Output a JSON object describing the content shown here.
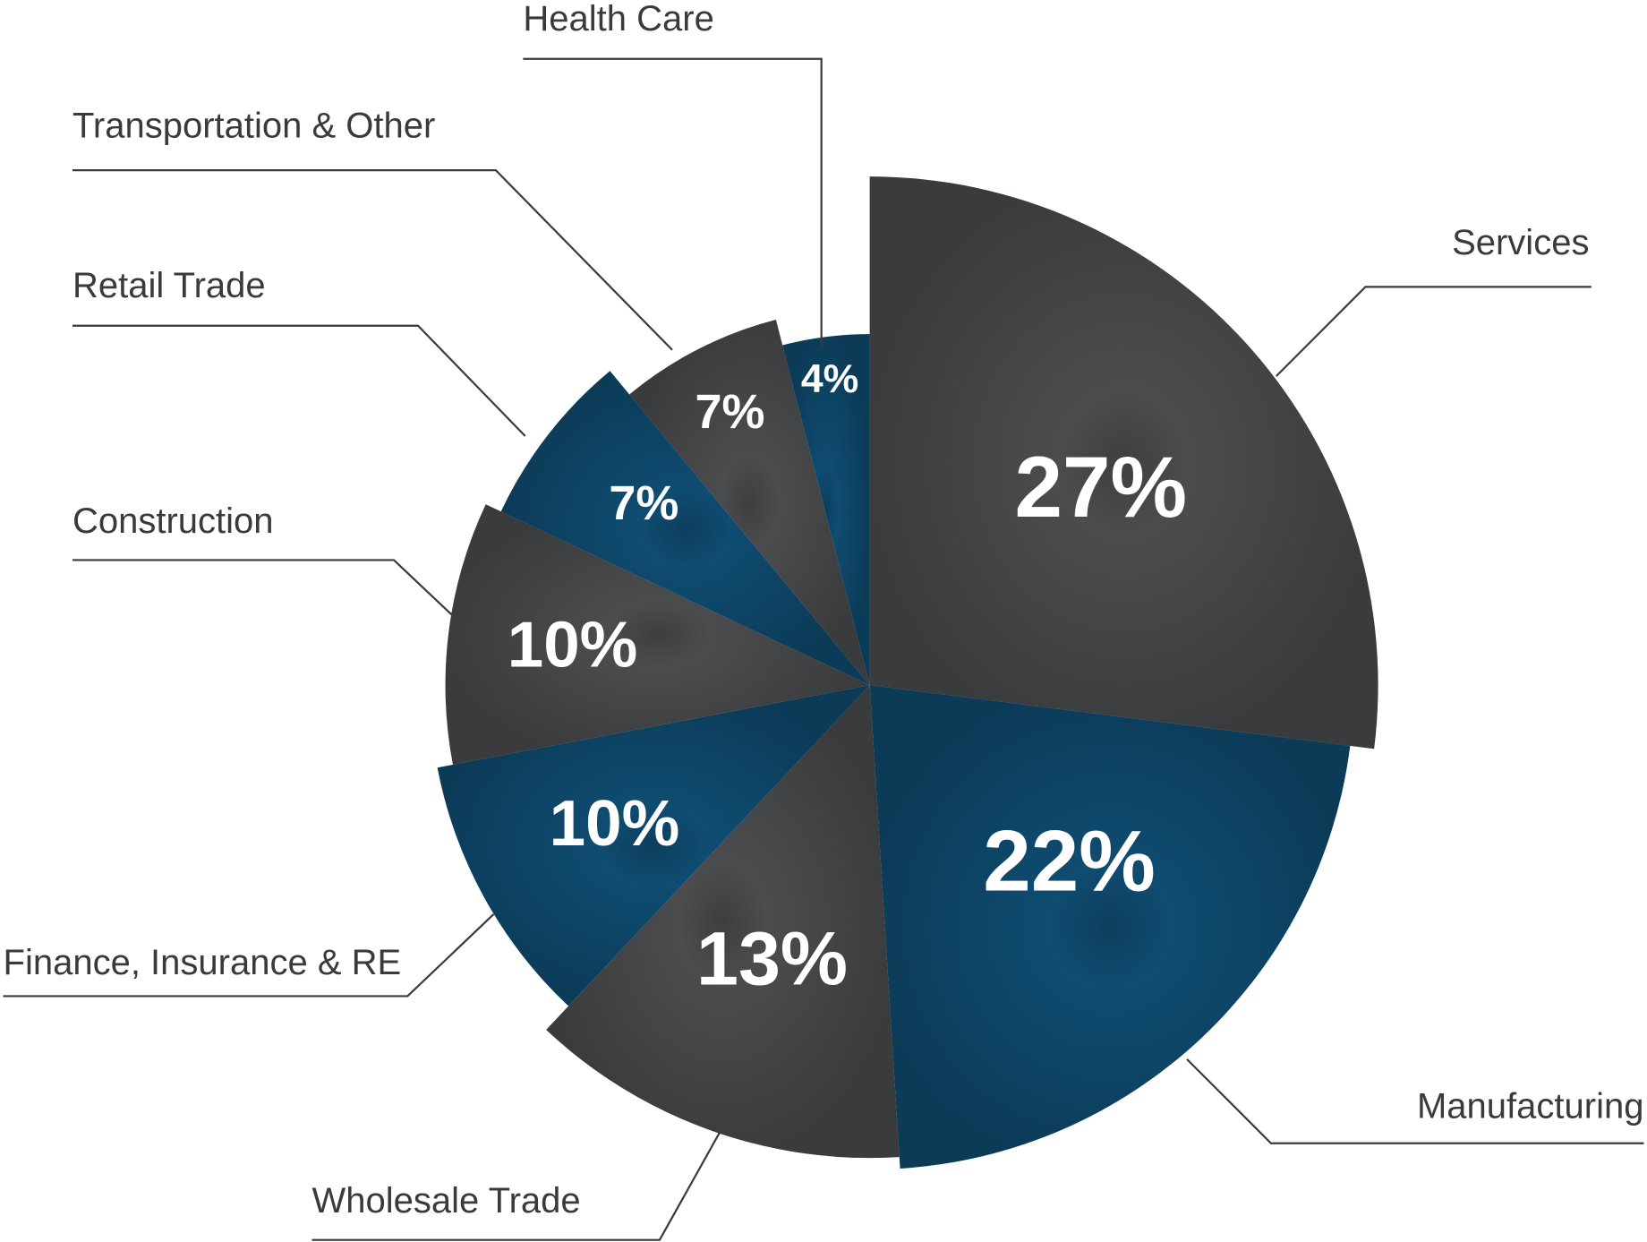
{
  "chart_data": {
    "type": "pie",
    "categories": [
      "Services",
      "Manufacturing",
      "Wholesale Trade",
      "Finance, Insurance & RE",
      "Construction",
      "Retail Trade",
      "Transportation & Other",
      "Health Care"
    ],
    "values": [
      27,
      22,
      13,
      10,
      10,
      7,
      7,
      4
    ],
    "value_labels": [
      "27%",
      "22%",
      "13%",
      "10%",
      "10%",
      "7%",
      "7%",
      "4%"
    ],
    "colors": [
      "#4b4c4e",
      "#0f4c71",
      "#4b4c4e",
      "#0f4c71",
      "#4b4c4e",
      "#0f4c71",
      "#4b4c4e",
      "#0f4c71"
    ]
  }
}
